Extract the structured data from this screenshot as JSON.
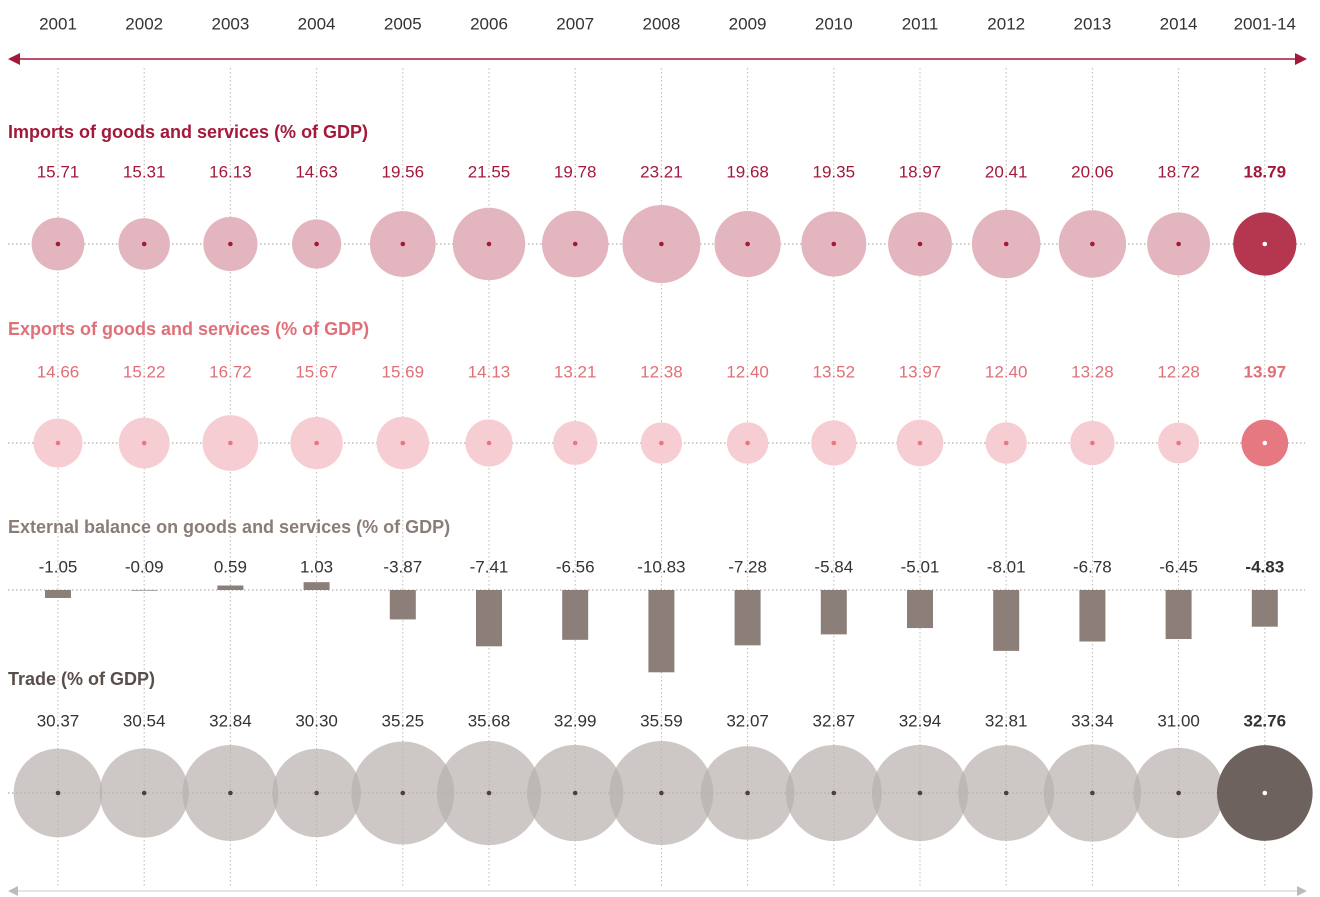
{
  "categories": [
    "2001",
    "2002",
    "2003",
    "2004",
    "2005",
    "2006",
    "2007",
    "2008",
    "2009",
    "2010",
    "2011",
    "2012",
    "2013",
    "2014",
    "2001-14"
  ],
  "chart_data": [
    {
      "type": "bubble",
      "title": "Imports of goods and services (% of GDP)",
      "color": "#e3b5bf",
      "highlight_color": "#b5364f",
      "title_color": "#a3193a",
      "values": [
        15.71,
        15.31,
        16.13,
        14.63,
        19.56,
        21.55,
        19.78,
        23.21,
        19.68,
        19.35,
        18.97,
        20.41,
        20.06,
        18.72,
        18.79
      ]
    },
    {
      "type": "bubble",
      "title": "Exports of goods and services (% of GDP)",
      "color": "#f6cdd2",
      "highlight_color": "#e57880",
      "title_color": "#e07078",
      "values": [
        14.66,
        15.22,
        16.72,
        15.67,
        15.69,
        14.13,
        13.21,
        12.38,
        12.4,
        13.52,
        13.97,
        12.4,
        13.28,
        12.28,
        13.97
      ],
      "value_labels": [
        "14.66",
        "15.22",
        "16.72",
        "15.67",
        "15.69",
        "14.13",
        "13.21",
        "12.38",
        "12.40",
        "13.52",
        "13.97",
        "12.40",
        "13.28",
        "12.28",
        "13.97"
      ]
    },
    {
      "type": "bar",
      "title": "External balance on goods and services (% of GDP)",
      "color": "#8c7f7a",
      "highlight_color": "#8c7f7a",
      "title_color": "#8a7d78",
      "values": [
        -1.05,
        -0.09,
        0.59,
        1.03,
        -3.87,
        -7.41,
        -6.56,
        -10.83,
        -7.28,
        -5.84,
        -5.01,
        -8.01,
        -6.78,
        -6.45,
        -4.83
      ]
    },
    {
      "type": "bubble",
      "title": "Trade (% of GDP)",
      "color": "#b8b0ad",
      "highlight_color": "#6e625e",
      "title_color": "#5a4e4a",
      "values": [
        30.37,
        30.54,
        32.84,
        30.3,
        35.25,
        35.68,
        32.99,
        35.59,
        32.07,
        32.87,
        32.94,
        32.81,
        33.34,
        31.0,
        32.76
      ],
      "value_labels": [
        "30.37",
        "30.54",
        "32.84",
        "30.30",
        "35.25",
        "35.68",
        "32.99",
        "35.59",
        "32.07",
        "32.87",
        "32.94",
        "32.81",
        "33.34",
        "31.00",
        "32.76"
      ]
    }
  ]
}
